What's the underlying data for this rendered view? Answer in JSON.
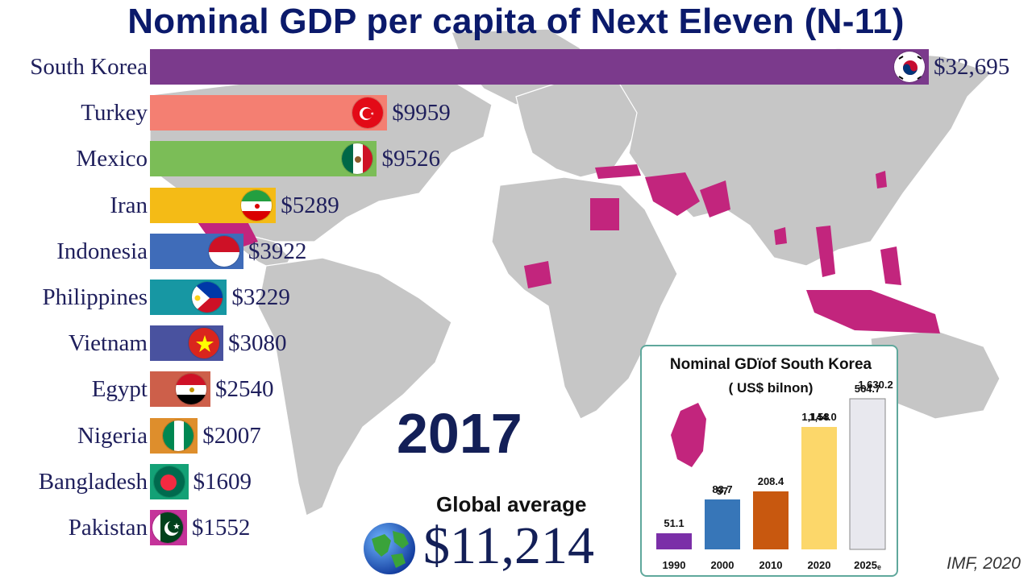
{
  "title": "Nominal GDP per capita of Next Eleven (N-11)",
  "year": "2017",
  "global_average": {
    "label": "Global average",
    "value": "$11,214"
  },
  "source": "IMF, 2020",
  "colors": {
    "title": "#0b1a6b",
    "highlight_countries": "#c2257d",
    "map_land": "#c6c6c6"
  },
  "chart_data": {
    "type": "bar",
    "title": "Nominal GDP per capita of Next Eleven (N-11)",
    "categories": [
      "South Korea",
      "Turkey",
      "Mexico",
      "Iran",
      "Indonesia",
      "Philippines",
      "Vietnam",
      "Egypt",
      "Nigeria",
      "Bangladesh",
      "Pakistan"
    ],
    "values": [
      32695,
      9959,
      9526,
      5289,
      3922,
      3229,
      3080,
      2540,
      2007,
      1609,
      1552
    ],
    "value_labels": [
      "$32,695",
      "$9959",
      "$9526",
      "$5289",
      "$3922",
      "$3229",
      "$3080",
      "$2540",
      "$2007",
      "$1609",
      "$1552"
    ],
    "colors": [
      "#7b3a8c",
      "#f47f72",
      "#7bbd57",
      "#f4bb16",
      "#3f6cb9",
      "#1797a3",
      "#49529f",
      "#cd5f4a",
      "#de8e2c",
      "#13a176",
      "#c5339a"
    ],
    "flags": [
      "south-korea-flag-icon",
      "turkey-flag-icon",
      "mexico-flag-icon",
      "iran-flag-icon",
      "indonesia-flag-icon",
      "philippines-flag-icon",
      "vietnam-flag-icon",
      "egypt-flag-icon",
      "nigeria-flag-icon",
      "bangladesh-flag-icon",
      "pakistan-flag-icon"
    ],
    "xlim": [
      0,
      32695
    ],
    "grid": false,
    "legend": "none"
  },
  "inset_chart": {
    "type": "bar",
    "title": "Nominal GDïof South Korea",
    "subtitle": "( US$ bilnon)",
    "categories": [
      "1990",
      "2000",
      "2010",
      "2020",
      "2025ₑ"
    ],
    "values": [
      51.1,
      83.7,
      208.4,
      1144.0,
      564.7
    ],
    "value_labels": [
      "51.1",
      "83.7",
      "208.4",
      "1,144.0",
      "564.7"
    ],
    "extra_labels": [
      "57",
      "1,58",
      "1,630.2"
    ],
    "colors": [
      "#7b2fa8",
      "#3776b8",
      "#c8580f",
      "#fcd76a",
      "#e8e8ee"
    ]
  }
}
